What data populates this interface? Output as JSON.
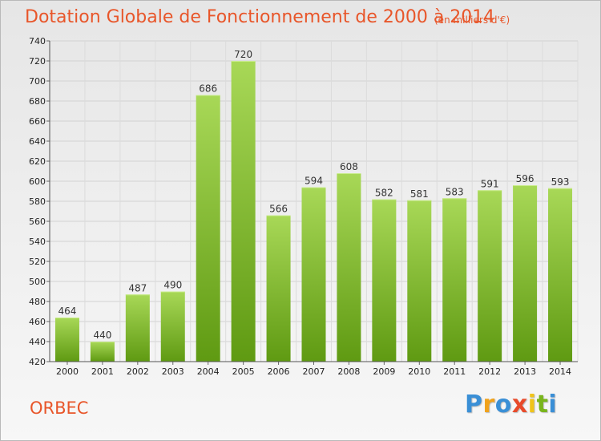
{
  "title": "Dotation Globale de Fonctionnement de 2000 à 2014",
  "subtitle": "(en milliers d'€)",
  "commune": "ORBEC",
  "logo": {
    "letters": [
      "P",
      "r",
      "o",
      "x",
      "i",
      "t",
      "i"
    ],
    "colors": [
      "#3a8fd6",
      "#f0a21c",
      "#3a8fd6",
      "#e84a2a",
      "#f0c419",
      "#79b51b",
      "#3a8fd6"
    ]
  },
  "colors": {
    "bar_top": "#a8d857",
    "bar_bottom": "#5f9a12",
    "title": "#e8562a"
  },
  "chart_data": {
    "type": "bar",
    "categories": [
      "2000",
      "2001",
      "2002",
      "2003",
      "2004",
      "2005",
      "2006",
      "2007",
      "2008",
      "2009",
      "2010",
      "2011",
      "2012",
      "2013",
      "2014"
    ],
    "values": [
      464,
      440,
      487,
      490,
      686,
      720,
      566,
      594,
      608,
      582,
      581,
      583,
      591,
      596,
      593
    ],
    "ylim": [
      420,
      740
    ],
    "yticks": [
      420,
      440,
      460,
      480,
      500,
      520,
      540,
      560,
      580,
      600,
      620,
      640,
      660,
      680,
      700,
      720,
      740
    ],
    "grid": true
  }
}
